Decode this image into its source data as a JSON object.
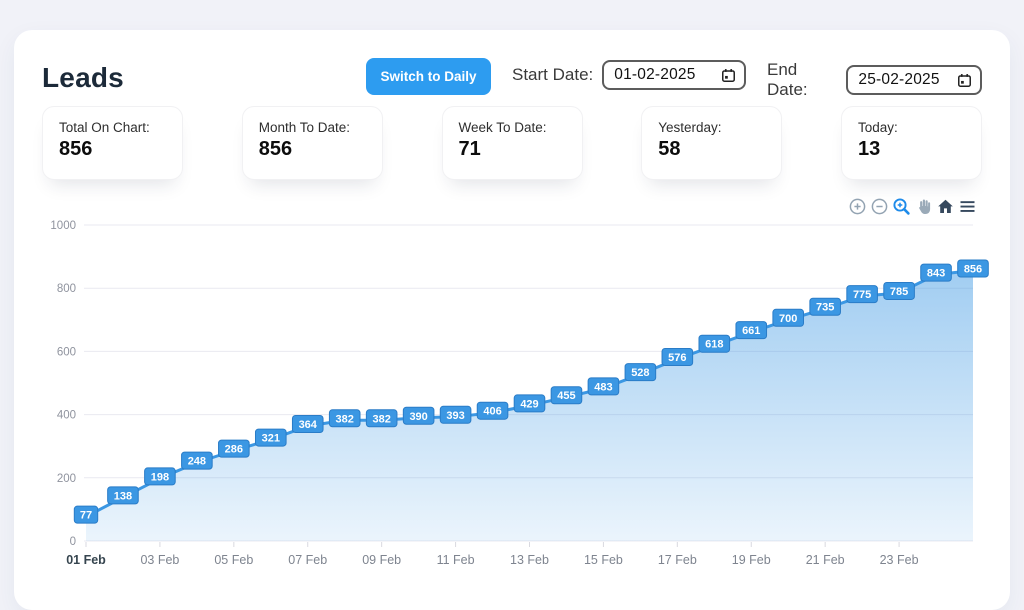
{
  "page": {
    "background": "#f1f2f8",
    "card_background": "#ffffff",
    "accent": "#2d9cf0"
  },
  "header": {
    "title": "Leads",
    "switch_button_label": "Switch to Daily",
    "start_date_label": "Start Date:",
    "start_date_value": "01-02-2025",
    "end_date_label": "End Date:",
    "end_date_value": "25-02-2025"
  },
  "stats": [
    {
      "label": "Total On Chart:",
      "value": "856"
    },
    {
      "label": "Month To Date:",
      "value": "856"
    },
    {
      "label": "Week To Date:",
      "value": "71"
    },
    {
      "label": "Yesterday:",
      "value": "58"
    },
    {
      "label": "Today:",
      "value": "13"
    }
  ],
  "chart_toolbar": {
    "icons": [
      "zoom-in",
      "zoom-out",
      "selection-zoom",
      "pan",
      "home",
      "menu"
    ],
    "active_icon": "selection-zoom",
    "inactive_color": "#93a3b2",
    "active_color": "#1e8bea",
    "dark_color": "#36495e"
  },
  "chart_data": {
    "type": "area",
    "title": "",
    "xlabel": "",
    "ylabel": "",
    "x": [
      "01 Feb",
      "02 Feb",
      "03 Feb",
      "04 Feb",
      "05 Feb",
      "06 Feb",
      "07 Feb",
      "08 Feb",
      "09 Feb",
      "10 Feb",
      "11 Feb",
      "12 Feb",
      "13 Feb",
      "14 Feb",
      "15 Feb",
      "16 Feb",
      "17 Feb",
      "18 Feb",
      "19 Feb",
      "20 Feb",
      "21 Feb",
      "22 Feb",
      "23 Feb",
      "24 Feb",
      "25 Feb"
    ],
    "values": [
      77,
      138,
      198,
      248,
      286,
      321,
      364,
      382,
      382,
      390,
      393,
      406,
      429,
      455,
      483,
      528,
      576,
      618,
      661,
      700,
      735,
      775,
      785,
      843,
      856
    ],
    "xticks": [
      "01 Feb",
      "03 Feb",
      "05 Feb",
      "07 Feb",
      "09 Feb",
      "11 Feb",
      "13 Feb",
      "15 Feb",
      "17 Feb",
      "19 Feb",
      "21 Feb",
      "23 Feb"
    ],
    "xtick_step": 2,
    "yticks": [
      0,
      200,
      400,
      600,
      800,
      1000
    ],
    "ylim": [
      0,
      1000
    ],
    "grid": "horizontal",
    "legend": "none",
    "line_color": "#3b97e3",
    "label_box_color": "#3b97e3",
    "label_box_border": "#2a7cc7",
    "label_text_color": "#ffffff",
    "area_gradient_top": "rgba(59,151,227,0.48)",
    "area_gradient_bottom": "rgba(59,151,227,0.10)",
    "grid_color": "#e9e9f0",
    "ytick_color": "#8f939e",
    "xtick_color": "#7e848f",
    "first_xtick_color": "#36454f"
  }
}
